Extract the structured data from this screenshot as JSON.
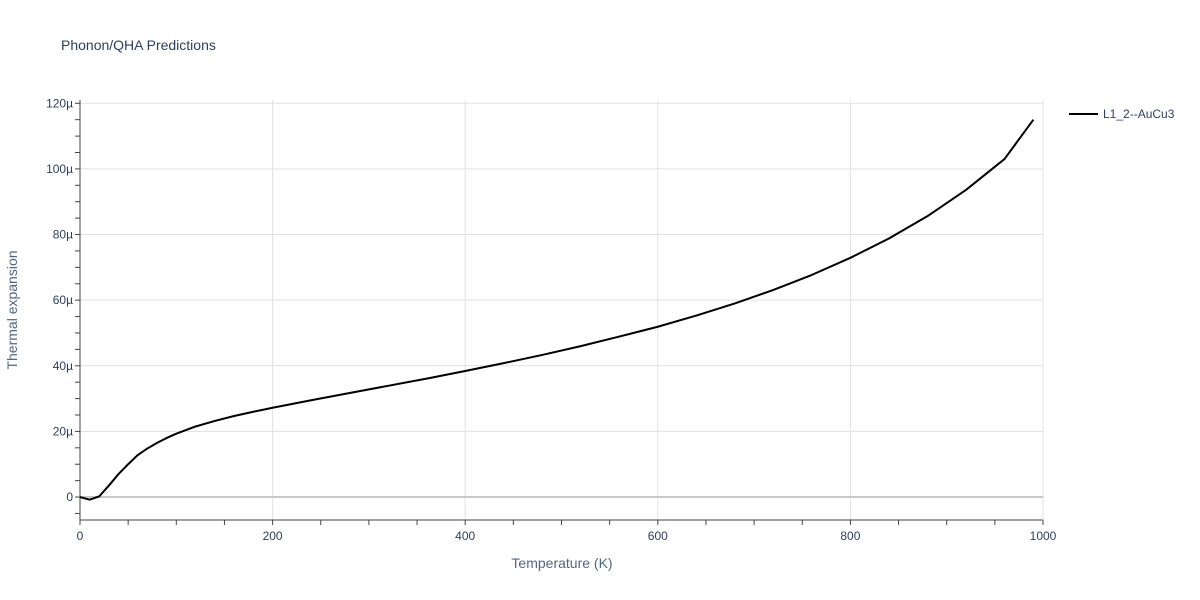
{
  "chart_data": {
    "type": "line",
    "title": "Phonon/QHA Predictions",
    "xlabel": "Temperature (K)",
    "ylabel": "Thermal expansion",
    "xlim": [
      0,
      1000
    ],
    "ylim": [
      -7e-06,
      0.000121
    ],
    "x_ticks": [
      0,
      200,
      400,
      600,
      800,
      1000
    ],
    "x_tick_labels": [
      "0",
      "200",
      "400",
      "600",
      "800",
      "1000"
    ],
    "y_ticks": [
      0,
      2e-05,
      4e-05,
      6e-05,
      8e-05,
      0.0001,
      0.00012
    ],
    "y_tick_labels": [
      "0",
      "20µ",
      "40µ",
      "60µ",
      "80µ",
      "100µ",
      "120µ"
    ],
    "grid": true,
    "legend_position": "top-right, outside plot",
    "series": [
      {
        "name": "L1_2--AuCu3",
        "color": "#000000",
        "x": [
          0,
          10,
          20,
          30,
          40,
          50,
          60,
          70,
          80,
          90,
          100,
          120,
          140,
          160,
          180,
          200,
          240,
          280,
          320,
          360,
          400,
          440,
          480,
          520,
          560,
          600,
          640,
          680,
          720,
          760,
          800,
          840,
          880,
          920,
          960,
          990
        ],
        "y": [
          0,
          -8e-07,
          2e-07,
          3.5e-06,
          7e-06,
          1e-05,
          1.28e-05,
          1.48e-05,
          1.65e-05,
          1.8e-05,
          1.93e-05,
          2.15e-05,
          2.32e-05,
          2.47e-05,
          2.6e-05,
          2.72e-05,
          2.95e-05,
          3.17e-05,
          3.39e-05,
          3.61e-05,
          3.84e-05,
          4.08e-05,
          4.33e-05,
          4.6e-05,
          4.89e-05,
          5.19e-05,
          5.53e-05,
          5.9e-05,
          6.31e-05,
          6.77e-05,
          7.29e-05,
          7.88e-05,
          8.56e-05,
          9.36e-05,
          0.000103,
          0.000115
        ]
      }
    ]
  }
}
